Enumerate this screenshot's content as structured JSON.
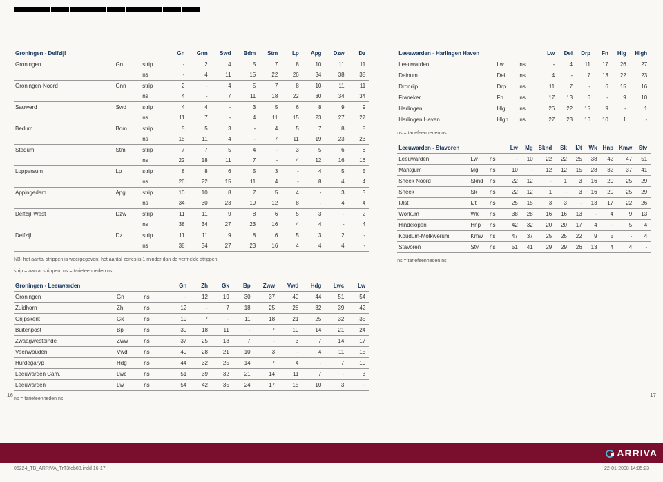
{
  "colors": {
    "brand": "#7a0f2d",
    "header_text": "#17365d",
    "bg": "#f9f8f4",
    "rule": "#999999"
  },
  "footer": {
    "file": "06224_TB_ARRIVA_TrT3feb08.indd   16-17",
    "stamp": "22-01-2008   14:05:23"
  },
  "page_left": "16",
  "page_right": "17",
  "logo_text": "ARRIVA",
  "t1": {
    "title": "Groningen - Delfzijl",
    "cols": [
      "Gn",
      "Gnn",
      "Swd",
      "Bdm",
      "Stm",
      "Lp",
      "Apg",
      "Dzw",
      "Dz"
    ],
    "rows": [
      {
        "n": "Groningen",
        "a": "Gn",
        "r1": [
          "strip",
          "-",
          "2",
          "4",
          "5",
          "7",
          "8",
          "10",
          "11",
          "11"
        ],
        "r2": [
          "ns",
          "-",
          "4",
          "11",
          "15",
          "22",
          "26",
          "34",
          "38",
          "38"
        ]
      },
      {
        "n": "Groningen-Noord",
        "a": "Gnn",
        "r1": [
          "strip",
          "2",
          "-",
          "4",
          "5",
          "7",
          "8",
          "10",
          "11",
          "11"
        ],
        "r2": [
          "ns",
          "4",
          "-",
          "7",
          "11",
          "18",
          "22",
          "30",
          "34",
          "34"
        ]
      },
      {
        "n": "Sauwerd",
        "a": "Swd",
        "r1": [
          "strip",
          "4",
          "4",
          "-",
          "3",
          "5",
          "6",
          "8",
          "9",
          "9"
        ],
        "r2": [
          "ns",
          "11",
          "7",
          "-",
          "4",
          "11",
          "15",
          "23",
          "27",
          "27"
        ]
      },
      {
        "n": "Bedum",
        "a": "Bdm",
        "r1": [
          "strip",
          "5",
          "5",
          "3",
          "-",
          "4",
          "5",
          "7",
          "8",
          "8"
        ],
        "r2": [
          "ns",
          "15",
          "11",
          "4",
          "-",
          "7",
          "11",
          "19",
          "23",
          "23"
        ]
      },
      {
        "n": "Stedum",
        "a": "Stm",
        "r1": [
          "strip",
          "7",
          "7",
          "5",
          "4",
          "-",
          "3",
          "5",
          "6",
          "6"
        ],
        "r2": [
          "ns",
          "22",
          "18",
          "11",
          "7",
          "-",
          "4",
          "12",
          "16",
          "16"
        ]
      },
      {
        "n": "Loppersum",
        "a": "Lp",
        "r1": [
          "strip",
          "8",
          "8",
          "6",
          "5",
          "3",
          "-",
          "4",
          "5",
          "5"
        ],
        "r2": [
          "ns",
          "26",
          "22",
          "15",
          "11",
          "4",
          "-",
          "8",
          "4",
          "4"
        ]
      },
      {
        "n": "Appingedam",
        "a": "Apg",
        "r1": [
          "strip",
          "10",
          "10",
          "8",
          "7",
          "5",
          "4",
          "-",
          "3",
          "3"
        ],
        "r2": [
          "ns",
          "34",
          "30",
          "23",
          "19",
          "12",
          "8",
          "-",
          "4",
          "4"
        ]
      },
      {
        "n": "Delfzijl-West",
        "a": "Dzw",
        "r1": [
          "strip",
          "11",
          "11",
          "9",
          "8",
          "6",
          "5",
          "3",
          "-",
          "2"
        ],
        "r2": [
          "ns",
          "38",
          "34",
          "27",
          "23",
          "16",
          "4",
          "4",
          "-",
          "4"
        ]
      },
      {
        "n": "Delfzijl",
        "a": "Dz",
        "r1": [
          "strip",
          "11",
          "11",
          "9",
          "8",
          "6",
          "5",
          "3",
          "2",
          "-"
        ],
        "r2": [
          "ns",
          "38",
          "34",
          "27",
          "23",
          "16",
          "4",
          "4",
          "4",
          "-"
        ]
      }
    ],
    "note1": "NB: het aantal strippen is weergegeven; het aantal zones is 1 minder dan de vermelde strippen.",
    "note2": "strip = aantal strippen, ns = tariefeenheden ns"
  },
  "t2": {
    "title": "Groningen - Leeuwarden",
    "cols": [
      "Gn",
      "Zh",
      "Gk",
      "Bp",
      "Zww",
      "Vwd",
      "Hdg",
      "Lwc",
      "Lw"
    ],
    "rows": [
      {
        "n": "Groningen",
        "a": "Gn",
        "r": [
          "ns",
          "-",
          "12",
          "19",
          "30",
          "37",
          "40",
          "44",
          "51",
          "54"
        ]
      },
      {
        "n": "Zuidhorn",
        "a": "Zh",
        "r": [
          "ns",
          "12",
          "-",
          "7",
          "18",
          "25",
          "28",
          "32",
          "39",
          "42"
        ]
      },
      {
        "n": "Grijpskerk",
        "a": "Gk",
        "r": [
          "ns",
          "19",
          "7",
          "-",
          "11",
          "18",
          "21",
          "25",
          "32",
          "35"
        ]
      },
      {
        "n": "Buitenpost",
        "a": "Bp",
        "r": [
          "ns",
          "30",
          "18",
          "11",
          "-",
          "7",
          "10",
          "14",
          "21",
          "24"
        ]
      },
      {
        "n": "Zwaagwesteinde",
        "a": "Zww",
        "r": [
          "ns",
          "37",
          "25",
          "18",
          "7",
          "-",
          "3",
          "7",
          "14",
          "17"
        ]
      },
      {
        "n": "Veenwouden",
        "a": "Vwd",
        "r": [
          "ns",
          "40",
          "28",
          "21",
          "10",
          "3",
          "-",
          "4",
          "11",
          "15"
        ]
      },
      {
        "n": "Hurdegaryp",
        "a": "Hdg",
        "r": [
          "ns",
          "44",
          "32",
          "25",
          "14",
          "7",
          "4",
          "-",
          "7",
          "10"
        ]
      },
      {
        "n": "Leeuwarden Cam.",
        "a": "Lwc",
        "r": [
          "ns",
          "51",
          "39",
          "32",
          "21",
          "14",
          "11",
          "7",
          "-",
          "3"
        ]
      },
      {
        "n": "Leeuwarden",
        "a": "Lw",
        "r": [
          "ns",
          "54",
          "42",
          "35",
          "24",
          "17",
          "15",
          "10",
          "3",
          "-"
        ]
      }
    ],
    "note": "ns = tariefeenheden ns"
  },
  "t3": {
    "title": "Leeuwarden - Harlingen Haven",
    "cols": [
      "Lw",
      "Dei",
      "Drp",
      "Fn",
      "Hlg",
      "Hlgh"
    ],
    "rows": [
      {
        "n": "Leeuwarden",
        "a": "Lw",
        "r": [
          "ns",
          "-",
          "4",
          "11",
          "17",
          "26",
          "27"
        ]
      },
      {
        "n": "Deinum",
        "a": "Dei",
        "r": [
          "ns",
          "4",
          "-",
          "7",
          "13",
          "22",
          "23"
        ]
      },
      {
        "n": "Dronrijp",
        "a": "Drp",
        "r": [
          "ns",
          "11",
          "7",
          "-",
          "6",
          "15",
          "16"
        ]
      },
      {
        "n": "Franeker",
        "a": "Fn",
        "r": [
          "ns",
          "17",
          "13",
          "6",
          "-",
          "9",
          "10"
        ]
      },
      {
        "n": "Harlingen",
        "a": "Hlg",
        "r": [
          "ns",
          "26",
          "22",
          "15",
          "9",
          "-",
          "1"
        ]
      },
      {
        "n": "Harlingen Haven",
        "a": "Hlgh",
        "r": [
          "ns",
          "27",
          "23",
          "16",
          "10",
          "1",
          "-"
        ]
      }
    ],
    "note": "ns = tariefeenheden ns"
  },
  "t4": {
    "title": "Leeuwarden - Stavoren",
    "cols": [
      "Lw",
      "Mg",
      "Sknd",
      "Sk",
      "IJt",
      "Wk",
      "Hnp",
      "Kmw",
      "Stv"
    ],
    "rows": [
      {
        "n": "Leeuwarden",
        "a": "Lw",
        "r": [
          "ns",
          "-",
          "10",
          "22",
          "22",
          "25",
          "38",
          "42",
          "47",
          "51"
        ]
      },
      {
        "n": "Mantgum",
        "a": "Mg",
        "r": [
          "ns",
          "10",
          "-",
          "12",
          "12",
          "15",
          "28",
          "32",
          "37",
          "41"
        ]
      },
      {
        "n": "Sneek Noord",
        "a": "Sknd",
        "r": [
          "ns",
          "22",
          "12",
          "-",
          "1",
          "3",
          "16",
          "20",
          "25",
          "29"
        ]
      },
      {
        "n": "Sneek",
        "a": "Sk",
        "r": [
          "ns",
          "22",
          "12",
          "1",
          "-",
          "3",
          "16",
          "20",
          "25",
          "29"
        ]
      },
      {
        "n": "IJlst",
        "a": "IJt",
        "r": [
          "ns",
          "25",
          "15",
          "3",
          "3",
          "-",
          "13",
          "17",
          "22",
          "26"
        ]
      },
      {
        "n": "Workum",
        "a": "Wk",
        "r": [
          "ns",
          "38",
          "28",
          "16",
          "16",
          "13",
          "-",
          "4",
          "9",
          "13"
        ]
      },
      {
        "n": "Hindelopen",
        "a": "Hnp",
        "r": [
          "ns",
          "42",
          "32",
          "20",
          "20",
          "17",
          "4",
          "-",
          "5",
          "4"
        ]
      },
      {
        "n": "Koudum-Molkwerum",
        "a": "Kmw",
        "r": [
          "ns",
          "47",
          "37",
          "25",
          "25",
          "22",
          "9",
          "5",
          "-",
          "4"
        ]
      },
      {
        "n": "Stavoren",
        "a": "Stv",
        "r": [
          "ns",
          "51",
          "41",
          "29",
          "29",
          "26",
          "13",
          "4",
          "4",
          "-"
        ]
      }
    ],
    "note": "ns = tariefeenheden ns"
  }
}
